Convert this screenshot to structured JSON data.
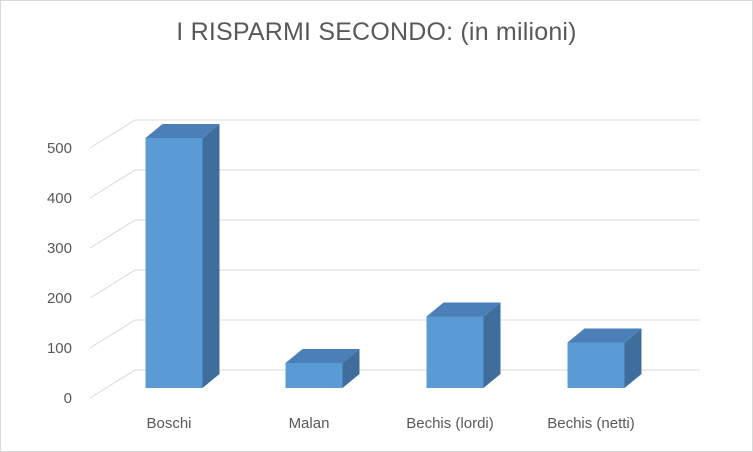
{
  "chart_data": {
    "type": "bar",
    "title": "I RISPARMI SECONDO: (in milioni)",
    "categories": [
      "Boschi",
      "Malan",
      "Bechis (lordi)",
      "Bechis (netti)"
    ],
    "values": [
      500,
      50,
      143,
      91
    ],
    "yticks": [
      "0",
      "100",
      "200",
      "300",
      "400",
      "500"
    ],
    "ylim": [
      0,
      500
    ],
    "grid": true,
    "bar_color": "#5b9bd5",
    "bar_side_color": "#3f6e9c",
    "bar_top_color": "#4a7fb8"
  }
}
